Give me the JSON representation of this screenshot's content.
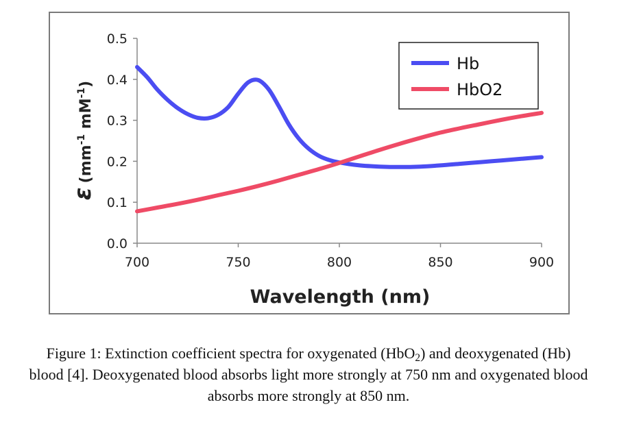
{
  "chart_data": {
    "type": "line",
    "xlabel": "Wavelength (nm)",
    "ylabel_symbol": "ε",
    "ylabel_unit": "(mm",
    "ylabel_sup1": "-1",
    "ylabel_mid": " mM",
    "ylabel_sup2": "-1",
    "ylabel_close": ")",
    "xlim": [
      700,
      900
    ],
    "ylim": [
      0,
      0.5
    ],
    "xticks": [
      "700",
      "750",
      "800",
      "850",
      "900"
    ],
    "yticks": [
      "0.0",
      "0.1",
      "0.2",
      "0.3",
      "0.4",
      "0.5"
    ],
    "grid": false,
    "legend_position": "top-right",
    "series": [
      {
        "name": "Hb",
        "color": "#4b4df2",
        "x": [
          700,
          705,
          710,
          715,
          720,
          725,
          730,
          735,
          740,
          745,
          750,
          755,
          760,
          765,
          770,
          775,
          780,
          785,
          790,
          795,
          800,
          810,
          820,
          830,
          840,
          850,
          860,
          870,
          880,
          890,
          900
        ],
        "y": [
          0.43,
          0.405,
          0.375,
          0.35,
          0.33,
          0.315,
          0.306,
          0.305,
          0.313,
          0.332,
          0.365,
          0.393,
          0.398,
          0.376,
          0.335,
          0.29,
          0.255,
          0.23,
          0.213,
          0.203,
          0.197,
          0.19,
          0.187,
          0.186,
          0.187,
          0.19,
          0.194,
          0.198,
          0.202,
          0.206,
          0.21
        ]
      },
      {
        "name": "HbO2",
        "color": "#ef4b66",
        "x": [
          700,
          710,
          720,
          730,
          740,
          750,
          760,
          770,
          780,
          790,
          800,
          810,
          820,
          830,
          840,
          850,
          860,
          870,
          880,
          890,
          900
        ],
        "y": [
          0.078,
          0.087,
          0.096,
          0.106,
          0.117,
          0.128,
          0.14,
          0.153,
          0.167,
          0.181,
          0.196,
          0.212,
          0.228,
          0.243,
          0.257,
          0.27,
          0.281,
          0.291,
          0.301,
          0.31,
          0.318
        ]
      }
    ]
  },
  "caption": {
    "part1": "Figure 1: Extinction coefficient spectra for oxygenated (HbO",
    "sub": "2",
    "part2": ") and deoxygenated (Hb) blood [4]. Deoxygenated blood absorbs light more strongly at 750 nm and oxygenated blood absorbs more strongly at 850 nm."
  }
}
